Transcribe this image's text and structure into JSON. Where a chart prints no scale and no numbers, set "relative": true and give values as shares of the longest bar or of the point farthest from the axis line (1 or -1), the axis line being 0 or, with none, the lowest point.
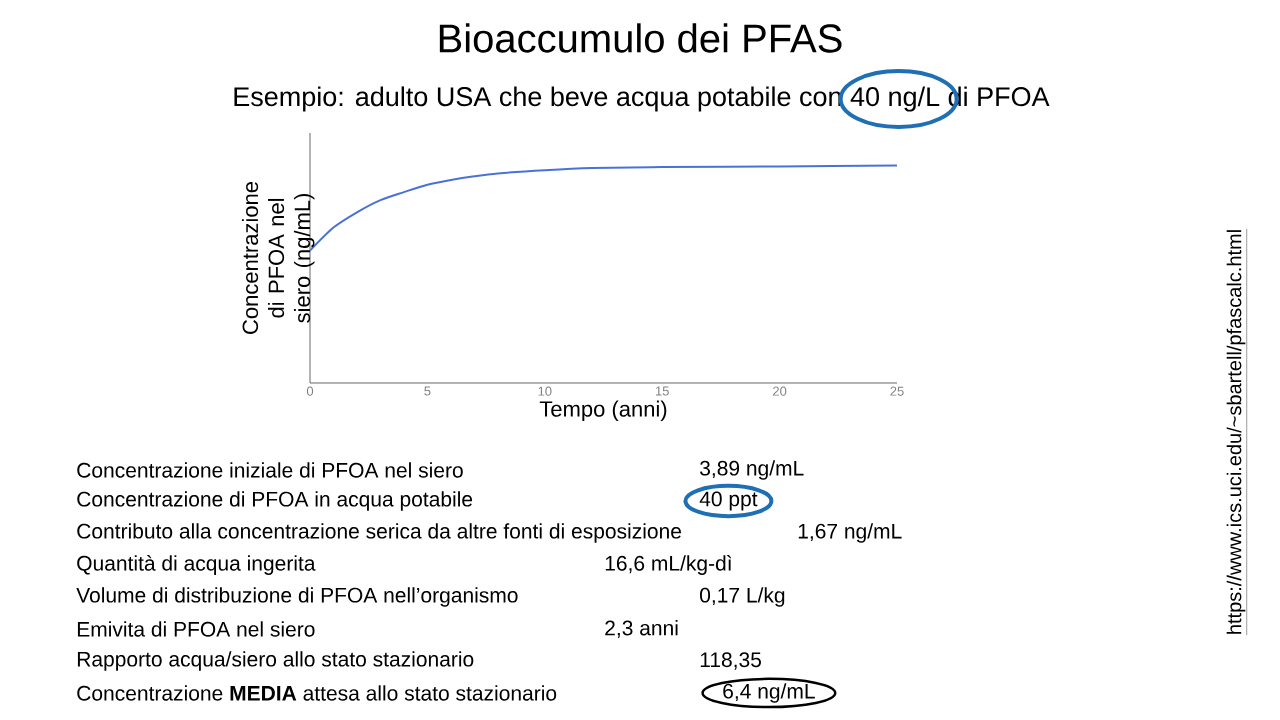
{
  "chart_data": {
    "type": "line",
    "title": "Bioaccumulo dei PFAS",
    "subtitle": "Esempio: adulto USA che beve acqua potabile con 40 ng/L di PFOA",
    "xlabel": "Tempo (anni)",
    "ylabel": "Concentrazione di PFOA nel siero (ng/mL)",
    "relative": true,
    "color": "#4a72d6",
    "xlim": [
      0,
      25
    ],
    "xticks": [
      0,
      5,
      10,
      15,
      20,
      25
    ],
    "x": [
      0,
      1,
      2,
      3,
      4,
      5,
      6,
      7,
      8,
      10,
      12,
      15,
      20,
      25
    ],
    "values": [
      0.609,
      0.715,
      0.785,
      0.841,
      0.878,
      0.912,
      0.934,
      0.951,
      0.964,
      0.979,
      0.989,
      0.993,
      0.996,
      1.0
    ],
    "annotations": [
      "Concentrazione iniziale di PFOA nel siero",
      "3,89 ng/mL",
      "Concentrazione di PFOA in acqua potabile",
      "40 ppt",
      "Contributo alla concentrazione serica da altre fonti di esposizione",
      "1,67 ng/mL",
      "Quantità di acqua ingerita",
      "16,6 mL/kg-dì",
      "Volume di distribuzione di PFOA nell’organismo",
      "0,17 L/kg",
      "Emivita di PFOA nel siero",
      "2,3 anni",
      "Rapporto acqua/siero allo stato stazionario",
      "118,35",
      "Concentrazione **MEDIA** attesa allo stato stazionario",
      "6,4 ng/mL",
      "https://www.ics.uci.edu/~sbartell/pfascalc.html"
    ]
  }
}
